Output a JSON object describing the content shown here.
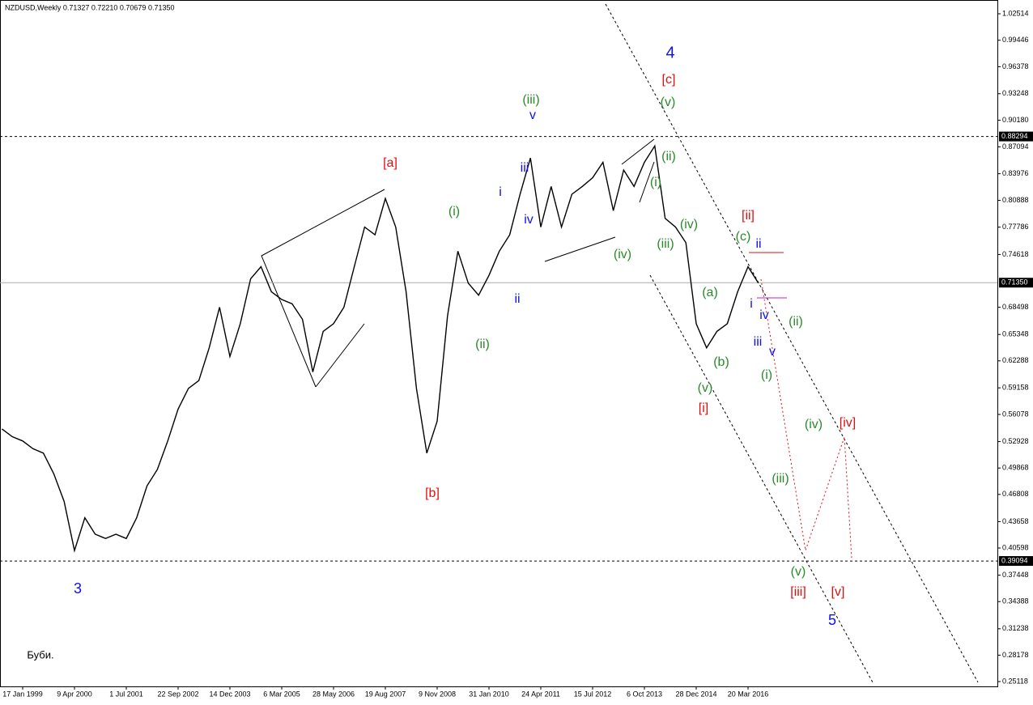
{
  "chart_data": {
    "type": "line",
    "title": "NZDUSD,Weekly  0.71327 0.72210 0.70679 0.71350",
    "color": "#000000",
    "categories": [
      null,
      null,
      "17 Jan 1999",
      null,
      null,
      null,
      null,
      "9 Apr 2000",
      null,
      null,
      null,
      null,
      "1 Jul 2001",
      null,
      null,
      null,
      null,
      "22 Sep 2002",
      null,
      null,
      null,
      null,
      "14 Dec 2003",
      null,
      null,
      null,
      null,
      "6 Mar 2005",
      null,
      null,
      null,
      null,
      "28 May 2006",
      null,
      null,
      null,
      null,
      "19 Aug 2007",
      null,
      null,
      null,
      null,
      "9 Nov 2008",
      null,
      null,
      null,
      null,
      "31 Jan 2010",
      null,
      null,
      null,
      null,
      "24 Apr 2011",
      null,
      null,
      null,
      null,
      "15 Jul 2012",
      null,
      null,
      null,
      null,
      "6 Oct 2013",
      null,
      null,
      null,
      null,
      "28 Dec 2014",
      null,
      null,
      null,
      null,
      "20 Mar 2016",
      null
    ],
    "values": [
      0.544,
      0.535,
      0.53,
      0.521,
      0.516,
      0.492,
      0.46,
      0.403,
      0.441,
      0.422,
      0.417,
      0.422,
      0.417,
      0.441,
      0.478,
      0.497,
      0.53,
      0.567,
      0.591,
      0.6,
      0.638,
      0.685,
      0.628,
      0.666,
      0.718,
      0.732,
      0.703,
      0.694,
      0.689,
      0.671,
      0.61,
      0.657,
      0.666,
      0.685,
      0.732,
      0.778,
      0.769,
      0.811,
      0.778,
      0.703,
      0.591,
      0.516,
      0.553,
      0.675,
      0.75,
      0.713,
      0.699,
      0.722,
      0.75,
      0.769,
      0.816,
      0.858,
      0.778,
      0.825,
      0.778,
      0.816,
      0.825,
      0.835,
      0.853,
      0.797,
      0.844,
      0.825,
      0.853,
      0.872,
      0.788,
      0.778,
      0.76,
      0.666,
      0.638,
      0.657,
      0.666,
      0.703,
      0.732,
      0.713
    ],
    "ylim": [
      0.2456,
      1.0411
    ],
    "yticks": [
      1.02514,
      0.99446,
      0.96378,
      0.93248,
      {
        "value": 0.9018,
        "label": "0.90180"
      },
      0.87094,
      0.83976,
      0.80888,
      0.77786,
      0.74618,
      0.68498,
      0.65348,
      0.62288,
      0.59158,
      0.56078,
      0.52928,
      0.49868,
      0.46808,
      0.43658,
      0.40598,
      0.37448,
      0.34388,
      0.31238,
      0.28178,
      0.25118
    ],
    "levels": [
      0.88294,
      {
        "value": 0.7135,
        "label": "0.71350"
      },
      0.39094
    ],
    "annotations": [
      {
        "text": "4",
        "color": "#1010ee"
      },
      {
        "text": "[c]",
        "color": "#e01010"
      },
      {
        "text": "(v)",
        "color": "#2a8a2a"
      },
      {
        "text": "(iii)",
        "color": "#2a8a2a"
      },
      {
        "text": "v",
        "color": "#1010ee"
      },
      {
        "text": "[a]",
        "color": "#e01010"
      },
      {
        "text": "iii",
        "color": "#1010ee"
      },
      {
        "text": "i",
        "color": "#1010ee"
      },
      {
        "text": "(i)",
        "color": "#2a8a2a"
      },
      {
        "text": "iv",
        "color": "#1010ee"
      },
      {
        "text": "(ii)",
        "color": "#2a8a2a"
      },
      {
        "text": "(i)",
        "color": "#2a8a2a"
      },
      {
        "text": "(iv)",
        "color": "#2a8a2a"
      },
      {
        "text": "(iii)",
        "color": "#2a8a2a"
      },
      {
        "text": "(iv)",
        "color": "#2a8a2a"
      },
      {
        "text": "[ii]",
        "color": "#e01010"
      },
      {
        "text": "(c)",
        "color": "#2a8a2a"
      },
      {
        "text": "ii",
        "color": "#1010ee"
      },
      {
        "text": "ii",
        "color": "#1010ee"
      },
      {
        "text": "(a)",
        "color": "#2a8a2a"
      },
      {
        "text": "i",
        "color": "#1010ee"
      },
      {
        "text": "iv",
        "color": "#1010ee"
      },
      {
        "text": "(ii)",
        "color": "#2a8a2a"
      },
      {
        "text": "(ii)",
        "color": "#2a8a2a"
      },
      {
        "text": "iii",
        "color": "#1010ee"
      },
      {
        "text": "v",
        "color": "#1010ee"
      },
      {
        "text": "(b)",
        "color": "#2a8a2a"
      },
      {
        "text": "(i)",
        "color": "#2a8a2a"
      },
      {
        "text": "(v)",
        "color": "#2a8a2a"
      },
      {
        "text": "[i]",
        "color": "#e01010"
      },
      {
        "text": "(iv)",
        "color": "#2a8a2a"
      },
      {
        "text": "[iv]",
        "color": "#e01010"
      },
      {
        "text": "[b]",
        "color": "#e01010"
      },
      {
        "text": "(iii)",
        "color": "#2a8a2a"
      },
      {
        "text": "(v)",
        "color": "#2a8a2a"
      },
      {
        "text": "[iii]",
        "color": "#e01010"
      },
      {
        "text": "[v]",
        "color": "#e01010"
      },
      {
        "text": "3",
        "color": "#1010ee"
      },
      {
        "text": "5",
        "color": "#1010ee"
      },
      {
        "text": "Буби.",
        "color": "#000000"
      }
    ]
  }
}
